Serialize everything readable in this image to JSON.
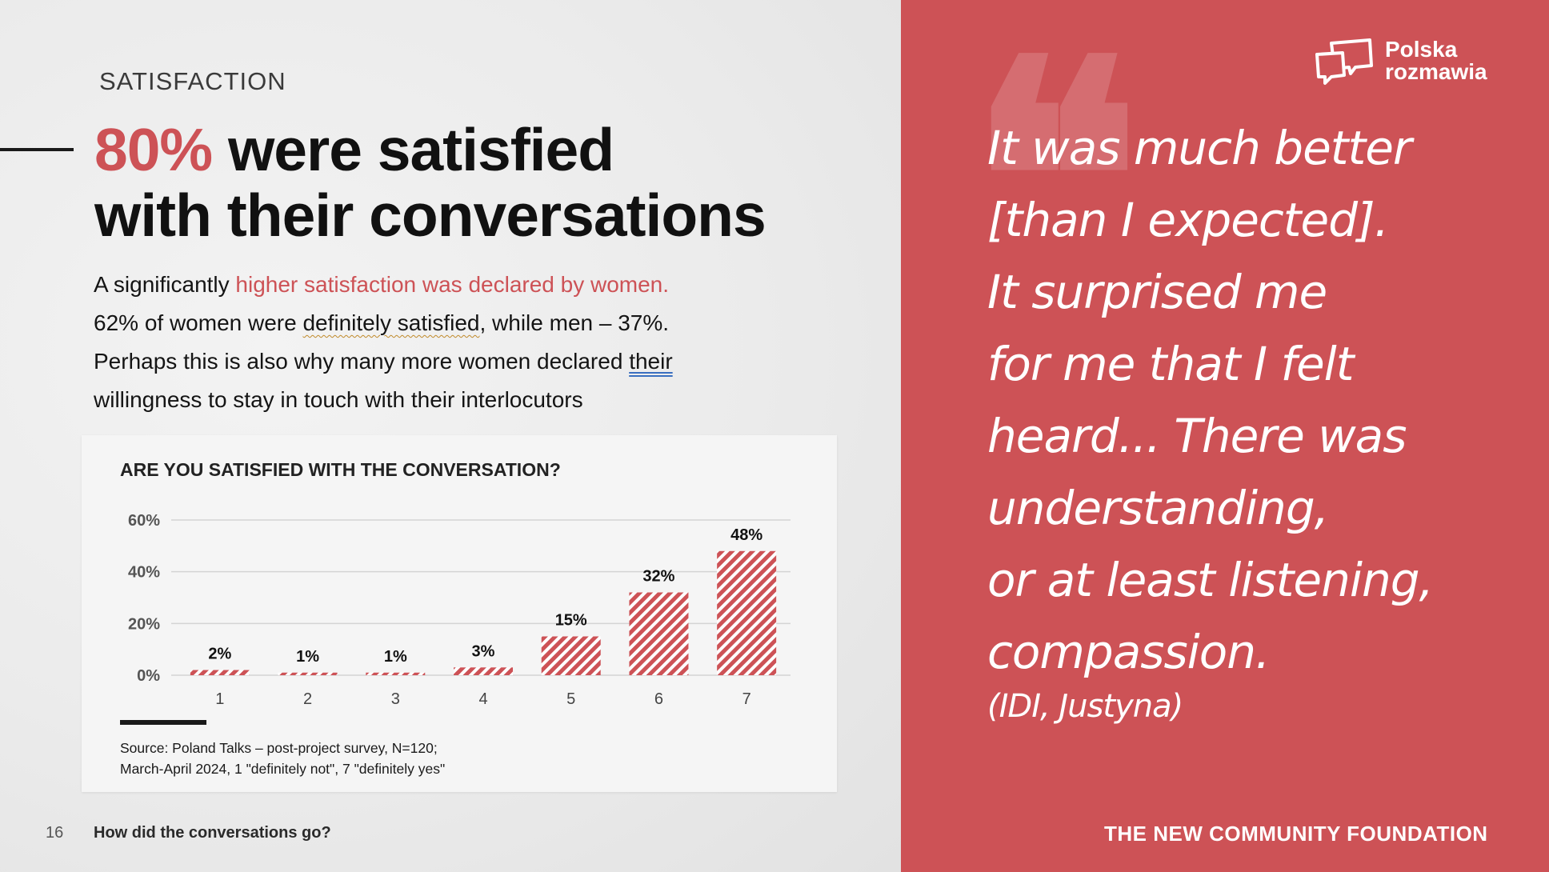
{
  "section_label": "SATISFACTION",
  "headline": {
    "accent": "80%",
    "line1_rest": " were satisfied",
    "line2": "with their conversations"
  },
  "body": {
    "p1_start": "A significantly ",
    "p1_red": "higher satisfaction was declared by women.",
    "p2_start": "62% of women were ",
    "p2_squiggle": "definitely satisfied",
    "p2_end": ", while men – 37%.",
    "p3_start": "Perhaps this is also why many more women declared ",
    "p3_dbl": "their",
    "p4": "willingness to stay in touch with their interlocutors"
  },
  "chart_data": {
    "type": "bar",
    "title": "ARE YOU SATISFIED WITH THE CONVERSATION?",
    "categories": [
      "1",
      "2",
      "3",
      "4",
      "5",
      "6",
      "7"
    ],
    "values": [
      2,
      1,
      1,
      3,
      15,
      32,
      48
    ],
    "value_labels": [
      "2%",
      "1%",
      "1%",
      "3%",
      "15%",
      "32%",
      "48%"
    ],
    "yticks": [
      0,
      20,
      40,
      60
    ],
    "ytick_labels": [
      "0%",
      "20%",
      "40%",
      "60%"
    ],
    "ylim": [
      0,
      60
    ],
    "xlabel": "",
    "ylabel": "",
    "bar_color": "#cd5256",
    "grid": true
  },
  "source": {
    "line1": "Source: Poland Talks – post-project survey, N=120;",
    "line2": "March-April 2024, 1 \"definitely not\", 7 \"definitely yes\""
  },
  "footer": {
    "page_number": "16",
    "title": "How did the conversations go?"
  },
  "right": {
    "logo_line1": "Polska",
    "logo_line2": "rozmawia",
    "quote_mark": "❝",
    "quote": "It was much better\n[than I expected].\nIt surprised me\nfor me that I felt\nheard... There was\nunderstanding,\nor at least listening,\ncompassion.",
    "attribution": "(IDI, Justyna)",
    "foundation": "THE NEW COMMUNITY FOUNDATION"
  },
  "colors": {
    "accent": "#cd5256",
    "text": "#111111"
  }
}
